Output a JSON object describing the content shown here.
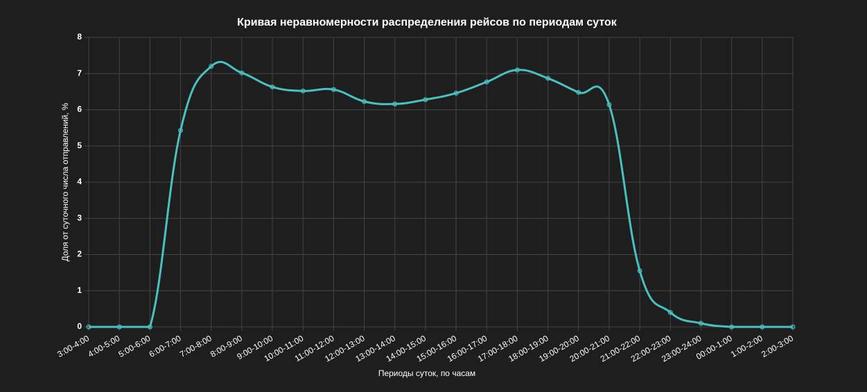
{
  "chart_data": {
    "type": "line",
    "title": "Кривая неравномерности распределения рейсов по периодам суток",
    "x_label": "Периоды суток, по часам",
    "y_label": "Доля от суточного числа отправлений, %",
    "categories": [
      "3:00-4:00",
      "4:00-5:00",
      "5:00-6:00",
      "6:00-7:00",
      "7:00-8:00",
      "8:00-9:00",
      "9:00-10:00",
      "10:00-11:00",
      "11:00-12:00",
      "12:00-13:00",
      "13:00-14:00",
      "14:00-15:00",
      "15:00-16:00",
      "16:00-17:00",
      "17:00-18:00",
      "18:00-19:00",
      "19:00-20:00",
      "20:00-21:00",
      "21:00-22:00",
      "22:00-23:00",
      "23:00-24:00",
      "00:00-1:00",
      "1:00-2:00",
      "2:00-3:00"
    ],
    "series": [
      {
        "color": "#4bc0c0",
        "values": [
          0,
          0,
          0,
          5.43,
          7.2,
          7.02,
          6.63,
          6.52,
          6.56,
          6.23,
          6.16,
          6.28,
          6.46,
          6.77,
          7.1,
          6.87,
          6.48,
          6.14,
          1.55,
          0.4,
          0.1,
          0,
          0,
          0
        ]
      }
    ],
    "ylim": [
      0,
      8
    ],
    "yticks": [
      0,
      1,
      2,
      3,
      4,
      5,
      6,
      7,
      8
    ],
    "grid": true
  }
}
